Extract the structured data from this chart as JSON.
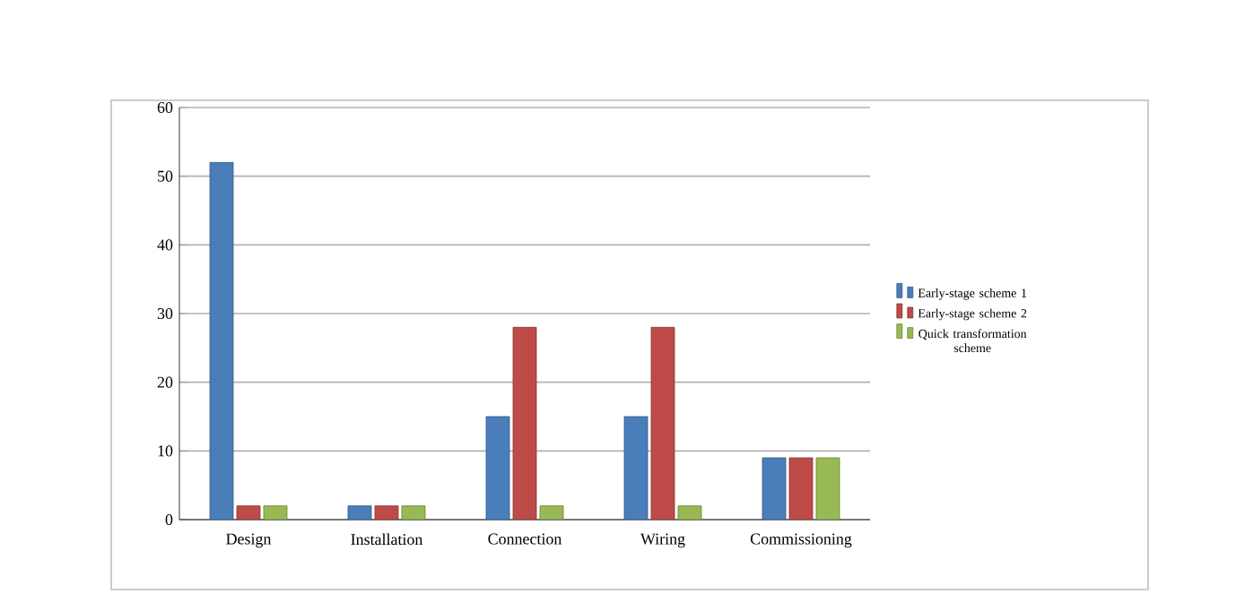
{
  "chart_data": {
    "type": "bar",
    "categories": [
      "Design",
      "Installation",
      "Connection",
      "Wiring",
      "Commissioning"
    ],
    "series": [
      {
        "name": "Early-stage scheme 1",
        "color": "#4a7ebb",
        "values": [
          52,
          2,
          15,
          15,
          9
        ]
      },
      {
        "name": "Early-stage scheme 2",
        "color": "#be4b48",
        "values": [
          2,
          2,
          28,
          28,
          9
        ]
      },
      {
        "name": "Quick transformation scheme",
        "color": "#98b954",
        "values": [
          2,
          2,
          2,
          2,
          9
        ]
      }
    ],
    "ylim": [
      0,
      60
    ],
    "yticks": [
      0,
      10,
      20,
      30,
      40,
      50,
      60
    ],
    "grid": "y",
    "legend": "right"
  }
}
